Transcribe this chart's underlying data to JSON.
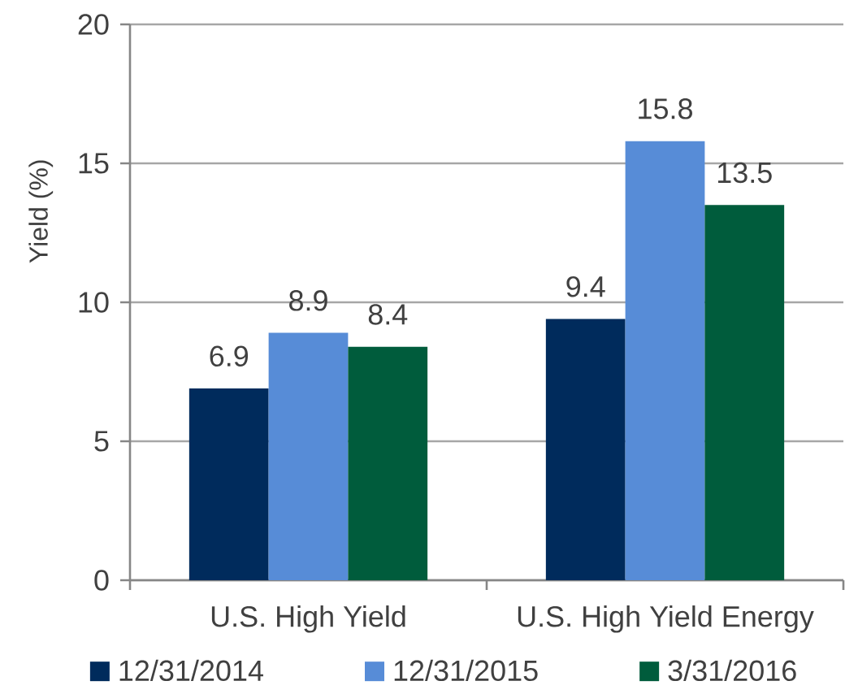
{
  "chart_data": {
    "type": "bar",
    "ylabel": "Yield (%)",
    "categories": [
      "U.S. High Yield",
      "U.S. High Yield Energy"
    ],
    "series": [
      {
        "name": "12/31/2014",
        "color": "#002b5c",
        "values": [
          6.9,
          9.4
        ]
      },
      {
        "name": "12/31/2015",
        "color": "#578cd7",
        "values": [
          8.9,
          15.8
        ]
      },
      {
        "name": "3/31/2016",
        "color": "#005c3c",
        "values": [
          8.4,
          13.5
        ]
      }
    ],
    "ylim": [
      0,
      20
    ],
    "yticks": [
      0,
      5,
      10,
      15,
      20
    ],
    "grid": "y",
    "legend": "bottom",
    "data_labels": true
  }
}
